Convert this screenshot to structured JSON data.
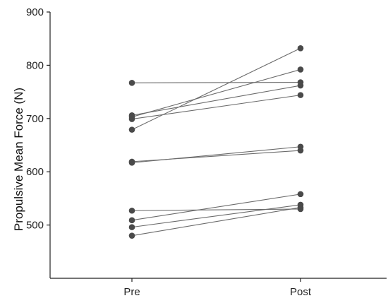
{
  "chart_data": {
    "type": "line",
    "title": "",
    "xlabel": "",
    "ylabel": "Propulsive Mean Force (N)",
    "categories": [
      "Pre",
      "Post"
    ],
    "ylim": [
      400,
      900
    ],
    "yticks": [
      500,
      600,
      700,
      800,
      900
    ],
    "grid": false,
    "legend": "none",
    "marker_color": "#4a4a4a",
    "line_color": "#6b6b6b",
    "series": [
      {
        "values": [
          767,
          768
        ]
      },
      {
        "values": [
          706,
          762
        ]
      },
      {
        "values": [
          703,
          792
        ]
      },
      {
        "values": [
          699,
          744
        ]
      },
      {
        "values": [
          679,
          832
        ]
      },
      {
        "values": [
          619,
          640
        ]
      },
      {
        "values": [
          617,
          647
        ]
      },
      {
        "values": [
          527,
          530
        ]
      },
      {
        "values": [
          509,
          558
        ]
      },
      {
        "values": [
          496,
          538
        ]
      },
      {
        "values": [
          480,
          533
        ]
      }
    ]
  }
}
